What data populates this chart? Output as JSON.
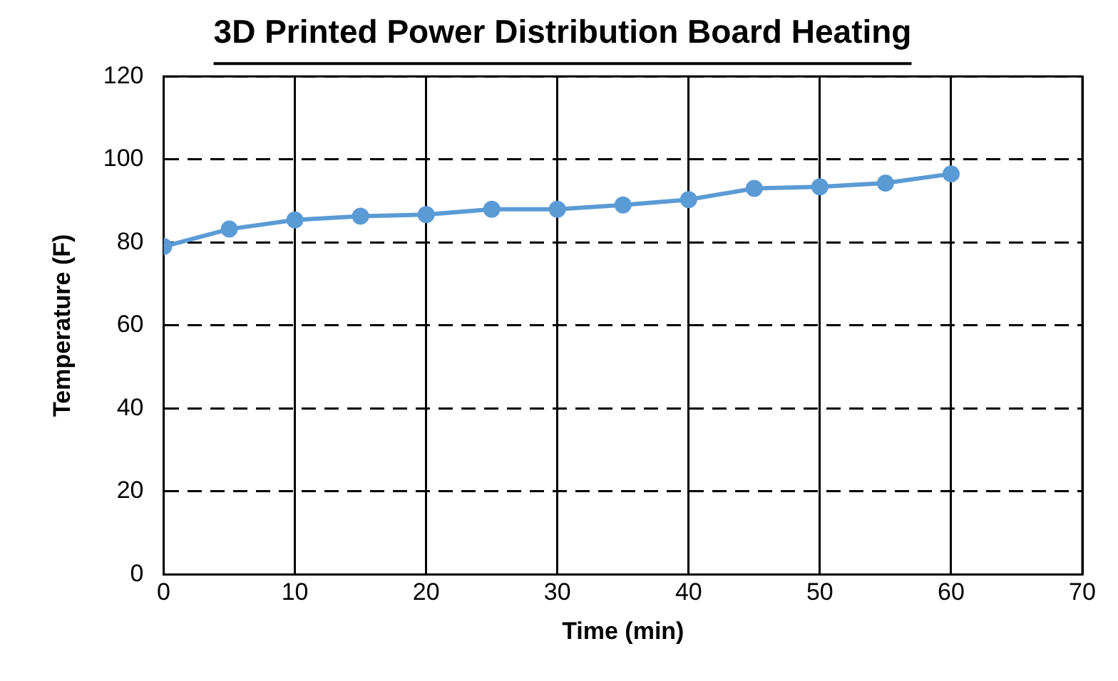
{
  "chart_data": {
    "type": "line",
    "title": "3D Printed Power Distribution Board Heating",
    "xlabel": "Time (min)",
    "ylabel": "Temperature (F)",
    "x": [
      0,
      5,
      10,
      15,
      20,
      25,
      30,
      35,
      40,
      45,
      50,
      55,
      60
    ],
    "series": [
      {
        "color": "#5b9bd5",
        "values": [
          79,
          83.2,
          85.4,
          86.3,
          86.7,
          88,
          88,
          89,
          90.3,
          93,
          93.4,
          94.3,
          96.5
        ]
      }
    ],
    "xlim": [
      0,
      70
    ],
    "xticks": [
      0,
      10,
      20,
      30,
      40,
      50,
      60,
      70
    ],
    "ylim": [
      0,
      120
    ],
    "yticks": [
      0,
      20,
      40,
      60,
      80,
      100,
      120
    ],
    "grid": true,
    "legend": false,
    "marker": "circle",
    "line_style": "solid"
  }
}
